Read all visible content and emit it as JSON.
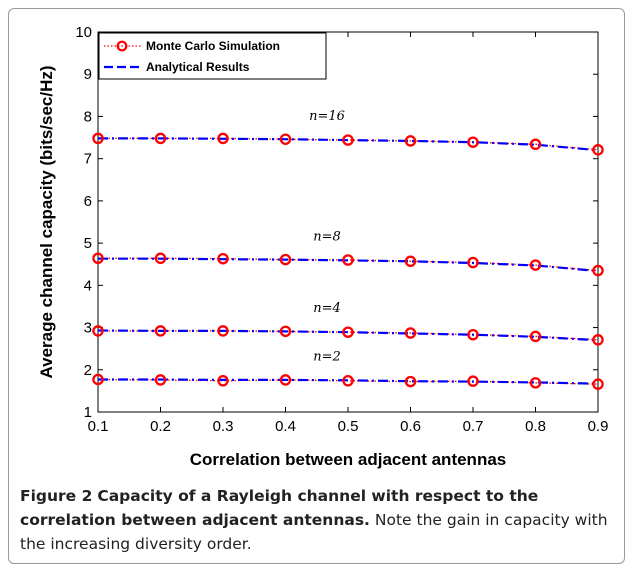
{
  "chart_data": {
    "type": "line",
    "xlabel": "Correlation between adjacent antennas",
    "ylabel": "Average channel capacity (bits/sec/Hz)",
    "xlim": [
      0.1,
      0.9
    ],
    "ylim": [
      1,
      10
    ],
    "x_ticks": [
      "0.1",
      "0.2",
      "0.3",
      "0.4",
      "0.5",
      "0.6",
      "0.7",
      "0.8",
      "0.9"
    ],
    "y_ticks": [
      "1",
      "2",
      "3",
      "4",
      "5",
      "6",
      "7",
      "8",
      "9",
      "10"
    ],
    "grid": false,
    "legend_position": "top-left",
    "legend": [
      {
        "label": "Monte Carlo Simulation",
        "color": "#ff0000",
        "style": "dotted with circle markers"
      },
      {
        "label": "Analytical Results",
        "color": "#0000ff",
        "style": "dash-dot"
      }
    ],
    "x": [
      0.1,
      0.2,
      0.3,
      0.4,
      0.5,
      0.6,
      0.7,
      0.8,
      0.9
    ],
    "groups": [
      {
        "annotation": "n=16",
        "monte_carlo": [
          7.48,
          7.48,
          7.48,
          7.46,
          7.44,
          7.42,
          7.39,
          7.34,
          7.21
        ],
        "analytical": [
          7.48,
          7.48,
          7.47,
          7.46,
          7.44,
          7.42,
          7.39,
          7.33,
          7.2
        ]
      },
      {
        "annotation": "n=8",
        "monte_carlo": [
          4.64,
          4.64,
          4.63,
          4.61,
          4.6,
          4.57,
          4.54,
          4.48,
          4.35
        ],
        "analytical": [
          4.63,
          4.63,
          4.62,
          4.61,
          4.59,
          4.57,
          4.53,
          4.47,
          4.34
        ]
      },
      {
        "annotation": "n=4",
        "monte_carlo": [
          2.92,
          2.92,
          2.92,
          2.91,
          2.89,
          2.87,
          2.83,
          2.79,
          2.71
        ],
        "analytical": [
          2.93,
          2.92,
          2.92,
          2.91,
          2.89,
          2.86,
          2.83,
          2.78,
          2.7
        ]
      },
      {
        "annotation": "n=2",
        "monte_carlo": [
          1.77,
          1.76,
          1.74,
          1.76,
          1.74,
          1.72,
          1.73,
          1.69,
          1.66
        ],
        "analytical": [
          1.77,
          1.77,
          1.76,
          1.76,
          1.75,
          1.73,
          1.72,
          1.7,
          1.67
        ]
      }
    ],
    "colors": {
      "monte_carlo": "#ff0000",
      "analytical": "#0000ff"
    }
  },
  "caption": {
    "label": "Figure 2",
    "bold_text": "Capacity of a Rayleigh channel with respect to the correlation between adjacent antennas.",
    "text": "Note the gain in capacity with the increasing diversity order."
  }
}
